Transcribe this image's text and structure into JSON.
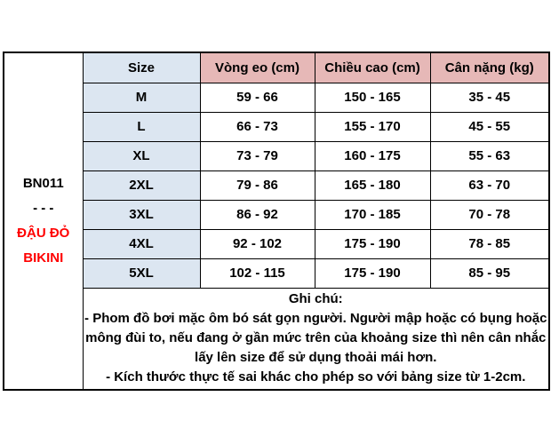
{
  "product": {
    "code": "BN011",
    "separator": "- - -",
    "name_lines": [
      "ĐẬU ĐỎ",
      "BIKINI"
    ]
  },
  "table": {
    "headers": [
      "Size",
      "Vòng eo (cm)",
      "Chiều cao (cm)",
      "Cân nặng (kg)"
    ],
    "rows": [
      {
        "size": "M",
        "waist": "59 - 66",
        "height": "150 - 165",
        "weight": "35 - 45"
      },
      {
        "size": "L",
        "waist": "66 - 73",
        "height": "155 - 170",
        "weight": "45 - 55"
      },
      {
        "size": "XL",
        "waist": "73 - 79",
        "height": "160 - 175",
        "weight": "55 - 63"
      },
      {
        "size": "2XL",
        "waist": "79 - 86",
        "height": "165 - 180",
        "weight": "63 - 70"
      },
      {
        "size": "3XL",
        "waist": "86 - 92",
        "height": "170 - 185",
        "weight": "70 - 78"
      },
      {
        "size": "4XL",
        "waist": "92 - 102",
        "height": "175 - 190",
        "weight": "78 - 85"
      },
      {
        "size": "5XL",
        "waist": "102 - 115",
        "height": "175 - 190",
        "weight": "85 - 95"
      }
    ]
  },
  "notes": {
    "title": "Ghi chú:",
    "lines": [
      "- Phom đồ bơi mặc ôm bó sát gọn người. Người mập hoặc có bụng hoặc mông đùi to, nếu đang ở gần mức trên của khoảng size thì nên cân nhắc lấy lên size để sử dụng thoải mái hơn.",
      "- Kích thước thực tế sai khác cho phép so với bảng size từ 1-2cm."
    ]
  },
  "colors": {
    "header_pink": "#e6b8b7",
    "size_blue": "#dce6f1",
    "accent_red": "#ff0000",
    "border": "#000000"
  }
}
